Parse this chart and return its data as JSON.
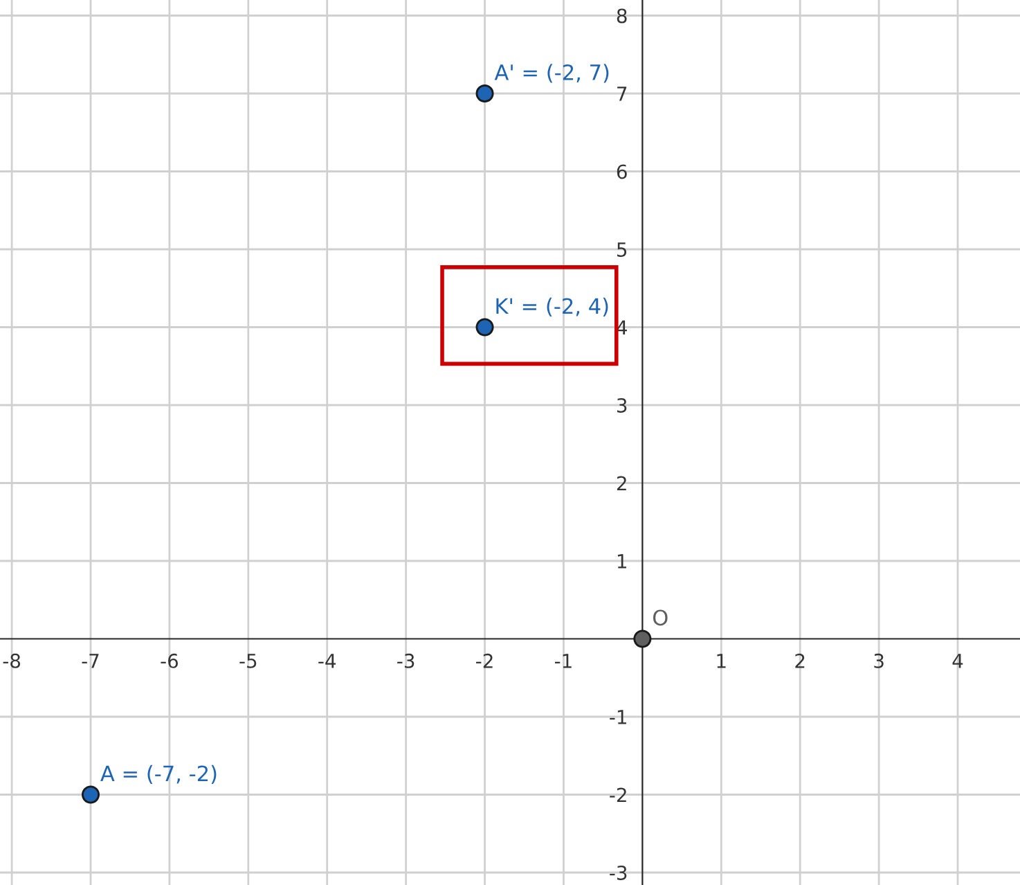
{
  "chart_data": {
    "type": "scatter",
    "x": [
      -7,
      -2,
      -2,
      0
    ],
    "series": [
      {
        "values": [
          -2,
          7,
          4,
          0
        ],
        "colors": [
          "#1e64b4",
          "#1e64b4",
          "#1e64b4",
          "#606060"
        ]
      }
    ],
    "xlim": [
      -8.15,
      4.79
    ],
    "ylim": [
      -3.16,
      8.2
    ],
    "xticks": [
      -8,
      -7,
      -6,
      -5,
      -4,
      -3,
      -2,
      -1,
      1,
      2,
      3,
      4
    ],
    "yticks": [
      -3,
      -2,
      -1,
      1,
      2,
      3,
      4,
      5,
      6,
      7,
      8
    ],
    "grid": true,
    "marker": "circle",
    "annotations": [
      {
        "text": "A = (-7, -2)",
        "x": -7,
        "y": -2
      },
      {
        "text": "A' = (-2, 7)",
        "x": -2,
        "y": 7
      },
      {
        "text": "K' = (-2, 4)",
        "x": -2,
        "y": 4
      },
      {
        "text": "O",
        "x": 0,
        "y": 0
      }
    ]
  }
}
